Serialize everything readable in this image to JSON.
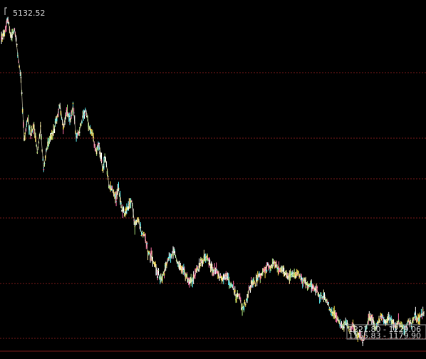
{
  "colors": {
    "background": "#000000",
    "grid": "#7a1a1a",
    "bottom_rule": "#7a1a1a",
    "label": "#d8d8d8",
    "candle_palette": [
      "#ffffff",
      "#f2e6a0",
      "#ff6fa8",
      "#59e8ec",
      "#ffe14a",
      "#a9e07a"
    ]
  },
  "chart_data": {
    "type": "line",
    "title": "",
    "xlabel": "",
    "ylabel": "",
    "scale": "linear",
    "ylim": [
      1120,
      5290
    ],
    "grid": "horizontal dashed",
    "legend": "none",
    "series": [
      {
        "values": [
          4888,
          4985,
          5132,
          4893,
          5010,
          4712,
          4421,
          3650,
          3922,
          3720,
          3840,
          3520,
          3790,
          3320,
          3580,
          3680,
          3750,
          3930,
          4085,
          3820,
          4015,
          3890,
          4070,
          3680,
          3780,
          3950,
          4020,
          3810,
          3720,
          3520,
          3610,
          3320,
          3450,
          3120,
          3050,
          2950,
          3060,
          2820,
          2750,
          2870,
          2920,
          2610,
          2710,
          2530,
          2490,
          2300,
          2250,
          2150,
          2050,
          1960,
          2070,
          2190,
          2240,
          2300,
          2190,
          2110,
          2060,
          2000,
          1935,
          1960,
          2080,
          2150,
          2200,
          2250,
          2160,
          2070,
          2090,
          2000,
          1960,
          2020,
          1935,
          1880,
          1760,
          1760,
          1620,
          1670,
          1820,
          1920,
          1920,
          2010,
          2040,
          2080,
          2150,
          2110,
          2180,
          2090,
          2090,
          2040,
          1980,
          2030,
          1990,
          2040,
          1970,
          1950,
          1900,
          1920,
          1860,
          1830,
          1740,
          1760,
          1690,
          1610,
          1560,
          1490,
          1420,
          1390,
          1440,
          1350,
          1420,
          1290,
          1300,
          1223,
          1380,
          1490,
          1500,
          1360,
          1460,
          1530,
          1420,
          1500,
          1440,
          1400,
          1460,
          1390,
          1350,
          1460,
          1425,
          1520,
          1480,
          1540,
          1575
        ]
      }
    ],
    "annotations": {
      "high_label": "5132.52",
      "range_labels": [
        "1221.80 - 1229.06",
        "1165.83 - 1179.90"
      ]
    }
  }
}
